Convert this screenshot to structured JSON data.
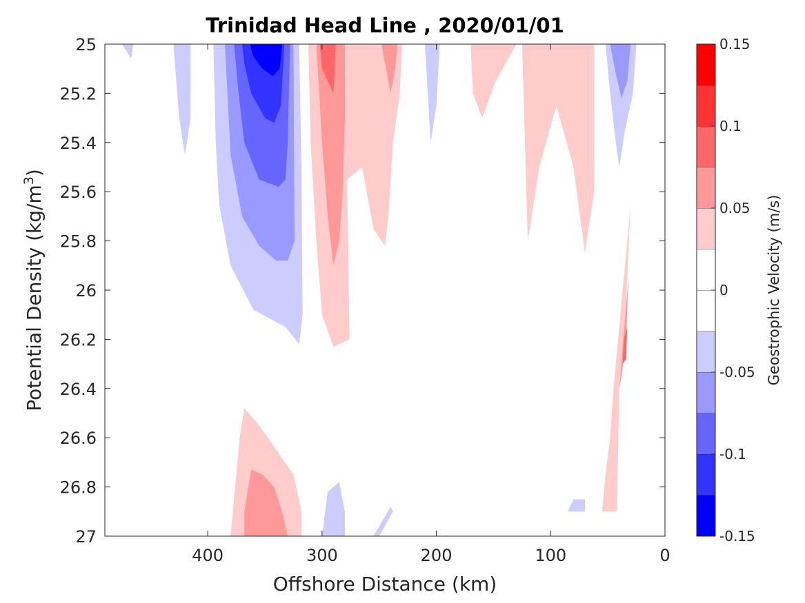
{
  "chart_data": {
    "type": "contour",
    "title": "Trinidad Head Line , 2020/01/01",
    "xlabel": "Offshore Distance (km)",
    "ylabel_main": "Potential Density (kg/m",
    "ylabel_sup": "3",
    "ylabel_close": ")",
    "xlim": [
      490,
      0
    ],
    "ylim": [
      25,
      27
    ],
    "x_reversed": true,
    "y_reversed": true,
    "x_ticks": [
      {
        "value": 400,
        "label": "400"
      },
      {
        "value": 300,
        "label": "300"
      },
      {
        "value": 200,
        "label": "200"
      },
      {
        "value": 100,
        "label": "100"
      },
      {
        "value": 0,
        "label": "0"
      }
    ],
    "y_ticks": [
      {
        "value": 25,
        "label": "25"
      },
      {
        "value": 25.2,
        "label": "25.2"
      },
      {
        "value": 25.4,
        "label": "25.4"
      },
      {
        "value": 25.6,
        "label": "25.6"
      },
      {
        "value": 25.8,
        "label": "25.8"
      },
      {
        "value": 26,
        "label": "26"
      },
      {
        "value": 26.2,
        "label": "26.2"
      },
      {
        "value": 26.4,
        "label": "26.4"
      },
      {
        "value": 26.6,
        "label": "26.6"
      },
      {
        "value": 26.8,
        "label": "26.8"
      },
      {
        "value": 27,
        "label": "27"
      }
    ],
    "colorbar": {
      "label": "Geostrophic Velocity (m/s)",
      "range": [
        -0.15,
        0.15
      ],
      "levels": [
        {
          "from": -0.15,
          "to": -0.125,
          "color": "#0000ff"
        },
        {
          "from": -0.125,
          "to": -0.1,
          "color": "#3333ff"
        },
        {
          "from": -0.1,
          "to": -0.075,
          "color": "#6666ff"
        },
        {
          "from": -0.075,
          "to": -0.05,
          "color": "#9999ff"
        },
        {
          "from": -0.05,
          "to": -0.025,
          "color": "#ccccff"
        },
        {
          "from": -0.025,
          "to": 0,
          "color": "#ffffff"
        },
        {
          "from": 0,
          "to": 0.025,
          "color": "#ffffff"
        },
        {
          "from": 0.025,
          "to": 0.05,
          "color": "#ffcccc"
        },
        {
          "from": 0.05,
          "to": 0.075,
          "color": "#ff9999"
        },
        {
          "from": 0.075,
          "to": 0.1,
          "color": "#ff6666"
        },
        {
          "from": 0.1,
          "to": 0.125,
          "color": "#ff3333"
        },
        {
          "from": 0.125,
          "to": 0.15,
          "color": "#ff0000"
        }
      ],
      "ticks": [
        {
          "value": 0.15,
          "label": "0.15"
        },
        {
          "value": 0.1,
          "label": "0.1"
        },
        {
          "value": 0.05,
          "label": "0.05"
        },
        {
          "value": 0,
          "label": "0"
        },
        {
          "value": -0.05,
          "label": "-0.05"
        },
        {
          "value": -0.1,
          "label": "-0.1"
        },
        {
          "value": -0.15,
          "label": "-0.15"
        }
      ]
    },
    "regions": [
      {
        "name": "far-offshore-sliver",
        "level": -0.05,
        "color": "#ccccff",
        "points": [
          [
            475,
            25
          ],
          [
            465,
            25
          ],
          [
            467,
            25.06
          ]
        ]
      },
      {
        "name": "west-negative-band",
        "level": -0.05,
        "color": "#ccccff",
        "points": [
          [
            430,
            25
          ],
          [
            415,
            25
          ],
          [
            415,
            25.3
          ],
          [
            420,
            25.45
          ],
          [
            425,
            25.3
          ]
        ]
      },
      {
        "name": "main-negative-l1",
        "level": -0.05,
        "color": "#ccccff",
        "points": [
          [
            395,
            25
          ],
          [
            320,
            25
          ],
          [
            318,
            25.5
          ],
          [
            317,
            26.1
          ],
          [
            320,
            26.22
          ],
          [
            332,
            26.15
          ],
          [
            360,
            26.08
          ],
          [
            380,
            25.9
          ],
          [
            390,
            25.65
          ],
          [
            393,
            25.4
          ]
        ]
      },
      {
        "name": "main-negative-l2",
        "level": -0.075,
        "color": "#9999ff",
        "points": [
          [
            385,
            25
          ],
          [
            325,
            25
          ],
          [
            324,
            25.8
          ],
          [
            330,
            25.88
          ],
          [
            340,
            25.88
          ],
          [
            355,
            25.82
          ],
          [
            370,
            25.7
          ],
          [
            380,
            25.45
          ]
        ]
      },
      {
        "name": "main-negative-l3",
        "level": -0.1,
        "color": "#6666ff",
        "points": [
          [
            377,
            25
          ],
          [
            328,
            25
          ],
          [
            330,
            25.4
          ],
          [
            332,
            25.55
          ],
          [
            338,
            25.58
          ],
          [
            355,
            25.55
          ],
          [
            368,
            25.4
          ],
          [
            373,
            25.2
          ]
        ]
      },
      {
        "name": "main-negative-l4",
        "level": -0.125,
        "color": "#3333ff",
        "points": [
          [
            370,
            25
          ],
          [
            333,
            25
          ],
          [
            336,
            25.25
          ],
          [
            342,
            25.32
          ],
          [
            350,
            25.3
          ],
          [
            362,
            25.2
          ],
          [
            368,
            25.08
          ]
        ]
      },
      {
        "name": "main-negative-core",
        "level": -0.15,
        "color": "#0000ff",
        "points": [
          [
            363,
            25
          ],
          [
            335,
            25
          ],
          [
            337,
            25.1
          ],
          [
            343,
            25.13
          ],
          [
            352,
            25.1
          ],
          [
            360,
            25.05
          ]
        ]
      },
      {
        "name": "mid-negative-sliver",
        "level": -0.05,
        "color": "#ccccff",
        "points": [
          [
            210,
            25
          ],
          [
            197,
            25
          ],
          [
            200,
            25.25
          ],
          [
            205,
            25.4
          ]
        ]
      },
      {
        "name": "nearshore-negative-l1",
        "level": -0.05,
        "color": "#ccccff",
        "points": [
          [
            52,
            25
          ],
          [
            25,
            25
          ],
          [
            28,
            25.2
          ],
          [
            35,
            25.35
          ],
          [
            40,
            25.5
          ],
          [
            43,
            25.4
          ],
          [
            48,
            25.2
          ]
        ]
      },
      {
        "name": "nearshore-negative-l2",
        "level": -0.075,
        "color": "#9999ff",
        "points": [
          [
            48,
            25
          ],
          [
            30,
            25
          ],
          [
            33,
            25.15
          ],
          [
            38,
            25.22
          ],
          [
            43,
            25.12
          ]
        ]
      },
      {
        "name": "main-positive-l1",
        "level": 0.05,
        "color": "#ffcccc",
        "points": [
          [
            312,
            25
          ],
          [
            230,
            25
          ],
          [
            232,
            25.2
          ],
          [
            238,
            25.4
          ],
          [
            242,
            25.7
          ],
          [
            245,
            25.82
          ],
          [
            255,
            25.75
          ],
          [
            265,
            25.5
          ],
          [
            278,
            25.55
          ],
          [
            276,
            26.2
          ],
          [
            290,
            26.23
          ],
          [
            300,
            26.1
          ],
          [
            305,
            25.8
          ],
          [
            310,
            25.4
          ]
        ]
      },
      {
        "name": "main-positive-l2",
        "level": 0.075,
        "color": "#ff9999",
        "points": [
          [
            305,
            25
          ],
          [
            280,
            25
          ],
          [
            280,
            25.3
          ],
          [
            282,
            25.6
          ],
          [
            285,
            25.8
          ],
          [
            290,
            25.9
          ],
          [
            295,
            25.7
          ],
          [
            300,
            25.4
          ]
        ]
      },
      {
        "name": "main-positive-l3",
        "level": 0.1,
        "color": "#ff6666",
        "points": [
          [
            302,
            25
          ],
          [
            288,
            25
          ],
          [
            290,
            25.2
          ],
          [
            295,
            25.15
          ],
          [
            300,
            25.1
          ]
        ]
      },
      {
        "name": "mid-positive-l1-core",
        "level": 0.075,
        "color": "#ff9999",
        "points": [
          [
            248,
            25
          ],
          [
            234,
            25
          ],
          [
            236,
            25.1
          ],
          [
            240,
            25.2
          ]
        ]
      },
      {
        "name": "midshore-positive-a",
        "level": 0.05,
        "color": "#ffcccc",
        "points": [
          [
            170,
            25
          ],
          [
            130,
            25
          ],
          [
            148,
            25.15
          ],
          [
            160,
            25.3
          ],
          [
            168,
            25.2
          ]
        ]
      },
      {
        "name": "midshore-positive-b",
        "level": 0.05,
        "color": "#ffcccc",
        "points": [
          [
            125,
            25
          ],
          [
            62,
            25
          ],
          [
            62,
            25.6
          ],
          [
            70,
            25.85
          ],
          [
            80,
            25.5
          ],
          [
            95,
            25.25
          ],
          [
            110,
            25.5
          ],
          [
            120,
            25.8
          ]
        ]
      },
      {
        "name": "nearshore-positive-l1",
        "level": 0.05,
        "color": "#ffcccc",
        "points": [
          [
            30,
            25.65
          ],
          [
            45,
            26.4
          ],
          [
            48,
            26.6
          ],
          [
            52,
            26.75
          ],
          [
            55,
            26.9
          ],
          [
            42,
            26.9
          ],
          [
            40,
            26.4
          ],
          [
            35,
            26.15
          ]
        ]
      },
      {
        "name": "nearshore-positive-l2",
        "level": 0.075,
        "color": "#ff9999",
        "points": [
          [
            32,
            25.95
          ],
          [
            40,
            26.4
          ],
          [
            38,
            26.35
          ],
          [
            34,
            26.2
          ]
        ]
      },
      {
        "name": "nearshore-positive-l3",
        "level": 0.1,
        "color": "#ff6666",
        "points": [
          [
            33,
            26.15
          ],
          [
            36,
            26.2
          ],
          [
            37,
            26.3
          ],
          [
            34,
            26.28
          ]
        ]
      },
      {
        "name": "deep-positive-l1",
        "level": 0.05,
        "color": "#ffcccc",
        "points": [
          [
            378,
            26.9
          ],
          [
            372,
            26.6
          ],
          [
            368,
            26.48
          ],
          [
            355,
            26.55
          ],
          [
            340,
            26.65
          ],
          [
            325,
            26.75
          ],
          [
            318,
            26.9
          ],
          [
            318,
            27
          ],
          [
            380,
            27
          ]
        ]
      },
      {
        "name": "deep-positive-l2",
        "level": 0.075,
        "color": "#ff9999",
        "points": [
          [
            368,
            26.9
          ],
          [
            362,
            26.73
          ],
          [
            352,
            26.75
          ],
          [
            342,
            26.8
          ],
          [
            335,
            26.9
          ],
          [
            330,
            27
          ],
          [
            368,
            27
          ]
        ]
      },
      {
        "name": "deep-negative-a",
        "level": -0.05,
        "color": "#ccccff",
        "points": [
          [
            300,
            27
          ],
          [
            295,
            26.82
          ],
          [
            285,
            26.78
          ],
          [
            280,
            26.9
          ],
          [
            280,
            27
          ]
        ]
      },
      {
        "name": "deep-negative-b",
        "level": -0.05,
        "color": "#ccccff",
        "points": [
          [
            255,
            27
          ],
          [
            240,
            26.88
          ],
          [
            238,
            26.9
          ],
          [
            250,
            27
          ]
        ]
      },
      {
        "name": "deep-negative-c",
        "level": -0.05,
        "color": "#ccccff",
        "points": [
          [
            85,
            26.9
          ],
          [
            80,
            26.85
          ],
          [
            70,
            26.85
          ],
          [
            70,
            26.9
          ]
        ]
      }
    ]
  }
}
